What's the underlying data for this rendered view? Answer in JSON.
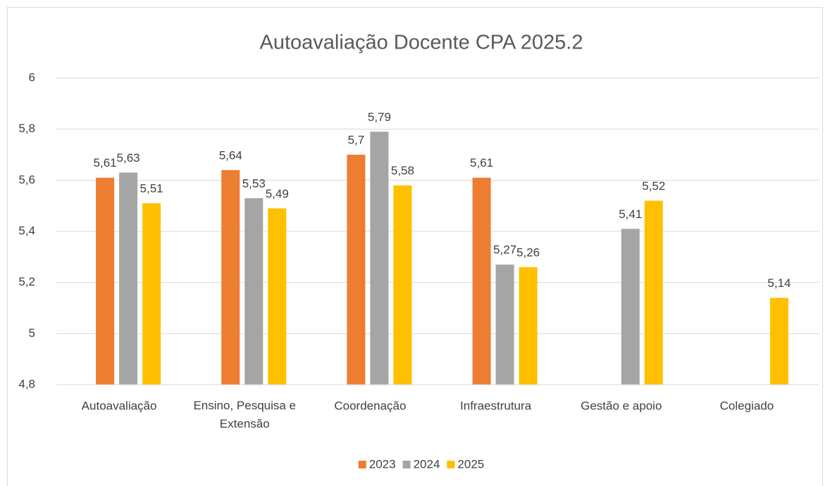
{
  "chart_data": {
    "type": "bar",
    "title": "Autoavaliação Docente CPA 2025.2",
    "categories": [
      "Autoavaliação",
      "Ensino, Pesquisa e Extensão",
      "Coordenação",
      "Infraestrutura",
      "Gestão e apoio",
      "Colegiado"
    ],
    "series": [
      {
        "name": "2023",
        "color": "#ED7D31",
        "values": [
          5.61,
          5.64,
          5.7,
          5.61,
          null,
          null
        ],
        "value_labels": [
          "5,61",
          "5,64",
          "5,7",
          "5,61",
          null,
          null
        ]
      },
      {
        "name": "2024",
        "color": "#A5A5A5",
        "values": [
          5.63,
          5.53,
          5.79,
          5.27,
          5.41,
          null
        ],
        "value_labels": [
          "5,63",
          "5,53",
          "5,79",
          "5,27",
          "5,41",
          null
        ]
      },
      {
        "name": "2025",
        "color": "#FFC000",
        "values": [
          5.51,
          5.49,
          5.58,
          5.26,
          5.52,
          5.14
        ],
        "value_labels": [
          "5,51",
          "5,49",
          "5,58",
          "5,26",
          "5,52",
          "5,14"
        ]
      }
    ],
    "ylim": [
      4.8,
      6
    ],
    "yticks": [
      {
        "value": 4.8,
        "label": "4,8"
      },
      5,
      {
        "value": 5.2,
        "label": "5,2"
      },
      {
        "value": 5.4,
        "label": "5,4"
      },
      {
        "value": 5.6,
        "label": "5,6"
      },
      {
        "value": 5.8,
        "label": "5,8"
      },
      6
    ],
    "grid": true,
    "legend": "bottom"
  }
}
